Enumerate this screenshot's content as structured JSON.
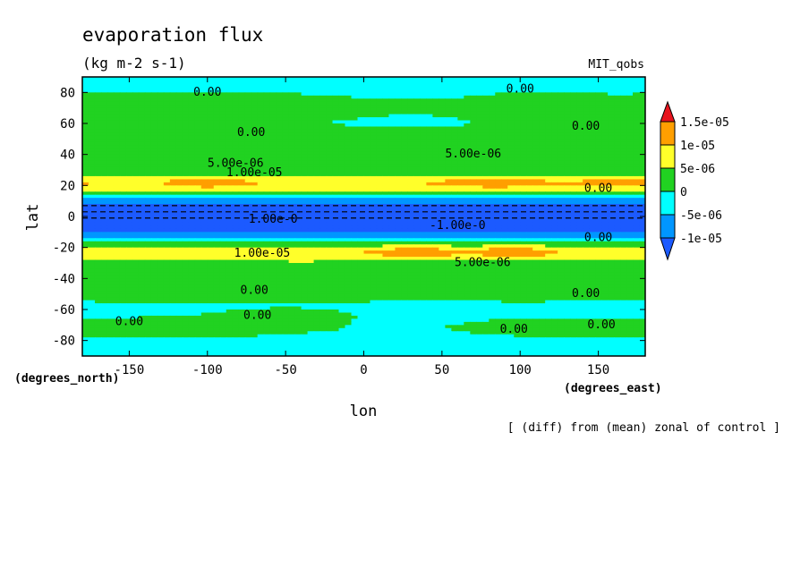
{
  "chart_data": {
    "type": "heatmap",
    "title": "evaporation flux",
    "subtitle": "(kg m-2 s-1)",
    "model_label": "MIT_qobs",
    "footnote": "[ (diff) from (mean) zonal of control ]",
    "xlabel": "lon",
    "ylabel": "lat",
    "x_unit": "(degrees_east)",
    "y_unit": "(degrees_north)",
    "xlim": [
      -180,
      180
    ],
    "ylim": [
      -90,
      90
    ],
    "xticks": [
      "-150",
      "-100",
      "-50",
      "0",
      "50",
      "100",
      "150"
    ],
    "yticks": [
      "80",
      "60",
      "40",
      "20",
      "0",
      "-20",
      "-40",
      "-60",
      "-80"
    ],
    "colorbar": {
      "labels": [
        "1.5e-05",
        "1e-05",
        "5e-06",
        "0",
        "-5e-06",
        "-1e-05"
      ],
      "bins": [
        {
          "range": [
            1.5e-05,
            null
          ],
          "color": "#e8141e"
        },
        {
          "range": [
            1e-05,
            1.5e-05
          ],
          "color": "#ff9f00"
        },
        {
          "range": [
            5e-06,
            1e-05
          ],
          "color": "#ffff2a"
        },
        {
          "range": [
            0,
            5e-06
          ],
          "color": "#21d221"
        },
        {
          "range": [
            -5e-06,
            0
          ],
          "color": "#00ffff"
        },
        {
          "range": [
            -1e-05,
            -5e-06
          ],
          "color": "#0096ff"
        },
        {
          "range": [
            null,
            -1e-05
          ],
          "color": "#1c5aff"
        }
      ]
    },
    "contour_labels": [
      {
        "text": "0.00",
        "lon": -100,
        "lat": 78
      },
      {
        "text": "0.00",
        "lon": 100,
        "lat": 80
      },
      {
        "text": "0.00",
        "lon": -72,
        "lat": 52
      },
      {
        "text": "0.00",
        "lon": 142,
        "lat": 56
      },
      {
        "text": "5.00e-06",
        "lon": -82,
        "lat": 32
      },
      {
        "text": "5.00e-06",
        "lon": 70,
        "lat": 38
      },
      {
        "text": "1.00e-05",
        "lon": -70,
        "lat": 26
      },
      {
        "text": "0.00",
        "lon": 150,
        "lat": 16
      },
      {
        "text": "1.00e-0",
        "lon": -58,
        "lat": -4
      },
      {
        "text": "-1.00e-0",
        "lon": 60,
        "lat": -8
      },
      {
        "text": "0.00",
        "lon": 150,
        "lat": -16
      },
      {
        "text": "1.00e-05",
        "lon": -65,
        "lat": -26
      },
      {
        "text": "5.00e-06",
        "lon": 76,
        "lat": -32
      },
      {
        "text": "0.00",
        "lon": -70,
        "lat": -50
      },
      {
        "text": "0.00",
        "lon": 142,
        "lat": -52
      },
      {
        "text": "0.00",
        "lon": -68,
        "lat": -66
      },
      {
        "text": "0.00",
        "lon": -150,
        "lat": -70
      },
      {
        "text": "0.00",
        "lon": 96,
        "lat": -75
      },
      {
        "text": "0.00",
        "lon": 152,
        "lat": -72
      }
    ]
  }
}
